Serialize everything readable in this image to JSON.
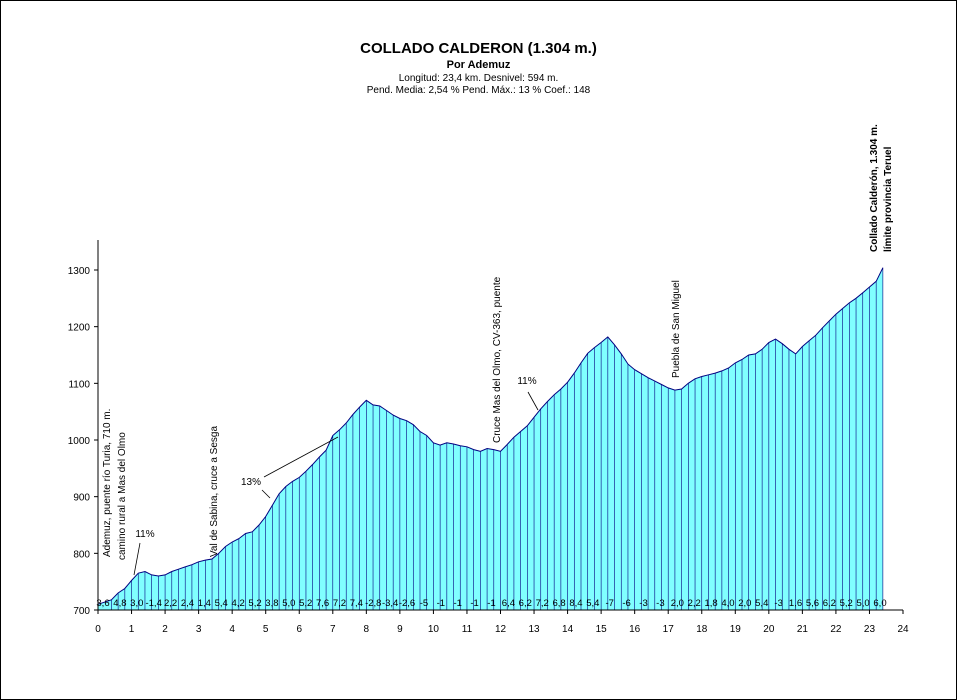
{
  "header": {
    "title": "COLLADO CALDERON (1.304 m.)",
    "subtitle": "Por    Ademuz",
    "line3": "Longitud: 23,4 km.  Desnivel: 594  m.",
    "line4": "Pend. Media: 2,54 %  Pend. Máx.: 13 %  Coef.: 148"
  },
  "chart_data": {
    "type": "area",
    "title": "COLLADO CALDERON (1.304 m.)",
    "xlim": [
      0,
      24
    ],
    "ylim": [
      700,
      1350
    ],
    "x_ticks": [
      "0",
      "1",
      "2",
      "3",
      "4",
      "5",
      "6",
      "7",
      "8",
      "9",
      "10",
      "11",
      "12",
      "13",
      "14",
      "15",
      "16",
      "17",
      "18",
      "19",
      "20",
      "21",
      "22",
      "23",
      "24"
    ],
    "y_ticks": [
      "700",
      "800",
      "900",
      "1000",
      "1100",
      "1200",
      "1300"
    ],
    "fill_color": "#80ffff",
    "line_color": "#000080",
    "x": [
      0,
      0.4,
      0.6,
      0.8,
      1.0,
      1.2,
      1.4,
      1.6,
      1.8,
      2.0,
      2.2,
      2.4,
      2.6,
      2.8,
      3.0,
      3.2,
      3.4,
      3.6,
      3.8,
      4.0,
      4.2,
      4.4,
      4.6,
      4.8,
      5.0,
      5.2,
      5.4,
      5.6,
      5.8,
      6.0,
      6.2,
      6.4,
      6.6,
      6.8,
      7.0,
      7.2,
      7.4,
      7.6,
      7.8,
      8.0,
      8.2,
      8.4,
      8.6,
      8.8,
      9.0,
      9.2,
      9.4,
      9.6,
      9.8,
      10.0,
      10.2,
      10.4,
      10.6,
      10.8,
      11.0,
      11.2,
      11.4,
      11.6,
      11.8,
      12.0,
      12.2,
      12.4,
      12.6,
      12.8,
      13.0,
      13.2,
      13.4,
      13.6,
      13.8,
      14.0,
      14.2,
      14.4,
      14.6,
      14.8,
      15.0,
      15.2,
      15.4,
      15.6,
      15.8,
      16.0,
      16.2,
      16.4,
      16.6,
      16.8,
      17.0,
      17.2,
      17.4,
      17.6,
      17.8,
      18.0,
      18.2,
      18.4,
      18.6,
      18.8,
      19.0,
      19.2,
      19.4,
      19.6,
      19.8,
      20.0,
      20.2,
      20.4,
      20.6,
      20.8,
      21.0,
      21.2,
      21.4,
      21.6,
      21.8,
      22.0,
      22.2,
      22.4,
      22.6,
      22.8,
      23.0,
      23.2,
      23.4
    ],
    "y": [
      710,
      718,
      730,
      738,
      752,
      765,
      768,
      762,
      760,
      762,
      768,
      772,
      776,
      780,
      785,
      788,
      790,
      800,
      812,
      820,
      826,
      835,
      838,
      850,
      865,
      885,
      905,
      918,
      927,
      934,
      945,
      957,
      970,
      982,
      1008,
      1018,
      1030,
      1045,
      1058,
      1070,
      1062,
      1060,
      1052,
      1044,
      1038,
      1034,
      1027,
      1015,
      1008,
      995,
      991,
      995,
      993,
      990,
      988,
      983,
      980,
      985,
      983,
      980,
      992,
      1005,
      1015,
      1025,
      1040,
      1055,
      1068,
      1080,
      1090,
      1102,
      1118,
      1136,
      1153,
      1163,
      1172,
      1182,
      1168,
      1152,
      1134,
      1124,
      1117,
      1110,
      1104,
      1098,
      1092,
      1088,
      1090,
      1100,
      1108,
      1112,
      1115,
      1118,
      1122,
      1127,
      1136,
      1142,
      1150,
      1152,
      1160,
      1172,
      1178,
      1170,
      1160,
      1152,
      1165,
      1175,
      1185,
      1198,
      1210,
      1222,
      1232,
      1242,
      1250,
      1260,
      1270,
      1280,
      1304
    ],
    "segment_labels": [
      {
        "x": 0.2,
        "label": "3,6"
      },
      {
        "x": 0.6,
        "label": "4,8"
      },
      {
        "x": 1.0,
        "label": "3,0"
      },
      {
        "x": 1.4,
        "label": "-1,4"
      },
      {
        "x": 1.8,
        "label": "2,2"
      },
      {
        "x": 2.2,
        "label": "2,4"
      },
      {
        "x": 2.6,
        "label": "1,4"
      },
      {
        "x": 3.0,
        "label": "5,4"
      },
      {
        "x": 3.4,
        "label": "4,2"
      },
      {
        "x": 3.8,
        "label": "5,2"
      },
      {
        "x": 4.2,
        "label": "3,8"
      },
      {
        "x": 4.6,
        "label": "5,0"
      },
      {
        "x": 5.0,
        "label": "5,2"
      },
      {
        "x": 5.4,
        "label": "7,6"
      },
      {
        "x": 5.8,
        "label": "7,2"
      },
      {
        "x": 6.2,
        "label": "7,4"
      },
      {
        "x": 6.6,
        "label": "-2,8"
      },
      {
        "x": 7.0,
        "label": "-3,4"
      },
      {
        "x": 7.4,
        "label": "-2,6"
      },
      {
        "x": 7.8,
        "label": "-5"
      },
      {
        "x": 8.2,
        "label": "-1"
      },
      {
        "x": 8.6,
        "label": "-1"
      },
      {
        "x": 9.0,
        "label": "-1"
      },
      {
        "x": 9.4,
        "label": "-1"
      },
      {
        "x": 9.8,
        "label": "6,4"
      },
      {
        "x": 10.2,
        "label": "6,2"
      },
      {
        "x": 10.6,
        "label": "7,2"
      },
      {
        "x": 11.0,
        "label": "6,8"
      },
      {
        "x": 11.4,
        "label": "8,4"
      },
      {
        "x": 11.8,
        "label": "5,4"
      },
      {
        "x": 12.2,
        "label": "-7"
      },
      {
        "x": 12.6,
        "label": "-6"
      },
      {
        "x": 13.0,
        "label": "-3"
      },
      {
        "x": 13.4,
        "label": "-3"
      },
      {
        "x": 13.8,
        "label": "2,0"
      },
      {
        "x": 14.2,
        "label": "2,2"
      },
      {
        "x": 14.6,
        "label": "1,8"
      },
      {
        "x": 15.0,
        "label": "4,0"
      },
      {
        "x": 15.4,
        "label": "2,0"
      },
      {
        "x": 15.8,
        "label": "5,4"
      },
      {
        "x": 16.2,
        "label": "-3"
      },
      {
        "x": 16.6,
        "label": "1,6"
      },
      {
        "x": 17.0,
        "label": "5,6"
      },
      {
        "x": 17.4,
        "label": "6,2"
      },
      {
        "x": 17.8,
        "label": "5,2"
      },
      {
        "x": 18.2,
        "label": "5,0"
      },
      {
        "x": 18.6,
        "label": "6,0"
      }
    ],
    "annotations": [
      {
        "id": "ademuz",
        "lines": [
          "Ademuz, puente río Turia, 710 m.",
          "camino rural a Mas del Olmo"
        ],
        "x": 0.25,
        "y": 815,
        "bold": false
      },
      {
        "id": "val-sabina",
        "lines": [
          "Val de Sabina, cruce a Sesga"
        ],
        "x": 3.5,
        "y": 795,
        "bold": false
      },
      {
        "id": "cruce-mas-olmo",
        "lines": [
          "Cruce Mas del Olmo, CV-363, puente"
        ],
        "x": 11.95,
        "y": 1000,
        "bold": false
      },
      {
        "id": "puebla",
        "lines": [
          "Puebla de San Miguel"
        ],
        "x": 17.45,
        "y": 1115,
        "bold": false
      },
      {
        "id": "collado",
        "lines": [
          "Collado Calderón, 1.304 m.",
          "límite provincia Teruel"
        ],
        "x": 23.2,
        "y": 1312,
        "bold": true
      }
    ],
    "gradient_callouts": [
      {
        "label": "11%",
        "tx": 1.3,
        "ty": 1350,
        "from": [
          1.05,
          0
        ],
        "to": [
          1.05,
          0
        ]
      },
      {
        "label": "13%",
        "tx": 4.6,
        "ty": 0,
        "from": [
          0,
          0
        ],
        "to": [
          0,
          0
        ]
      },
      {
        "label": "11%",
        "tx": 13.0,
        "ty": 0,
        "from": [
          0,
          0
        ],
        "to": [
          0,
          0
        ]
      }
    ]
  }
}
